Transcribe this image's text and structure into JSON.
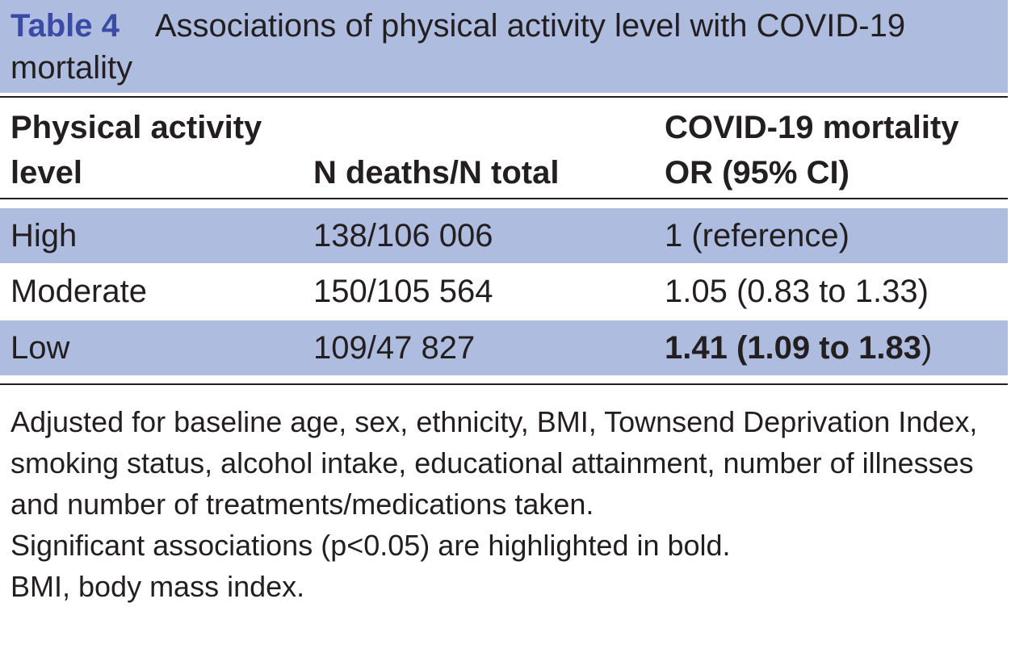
{
  "caption": {
    "label": "Table 4",
    "title": "Associations of physical activity level with COVID-19 mortality"
  },
  "table": {
    "headers": {
      "col1": {
        "line1": "Physical activity",
        "line2": "level"
      },
      "col2": {
        "line1": "",
        "line2": "N deaths/N total"
      },
      "col3": {
        "line1": "COVID-19 mortality",
        "line2": "OR (95% CI)"
      }
    },
    "rows": [
      {
        "level": "High",
        "n": "138/106 006",
        "or_bold": "",
        "or_plain": "1 (reference)",
        "bold": false
      },
      {
        "level": "Moderate",
        "n": "150/105 564",
        "or_bold": "",
        "or_plain": "1.05 (0.83 to 1.33)",
        "bold": false
      },
      {
        "level": "Low",
        "n": "109/47 827",
        "or_bold": "1.41 (1.09 to 1.83",
        "or_plain": ")",
        "bold": true
      }
    ]
  },
  "notes": {
    "adjusted": "Adjusted for baseline age, sex, ethnicity, BMI, Townsend Deprivation Index, smoking status, alcohol intake, educational attainment, number of illnesses and number of treatments/medications taken.",
    "significance": "Significant associations (p<0.05) are highlighted in bold.",
    "abbreviation": "BMI, body mass index."
  },
  "colors": {
    "header_band": "#aebce0",
    "label_blue": "#3a4ba6",
    "text": "#231f20"
  }
}
